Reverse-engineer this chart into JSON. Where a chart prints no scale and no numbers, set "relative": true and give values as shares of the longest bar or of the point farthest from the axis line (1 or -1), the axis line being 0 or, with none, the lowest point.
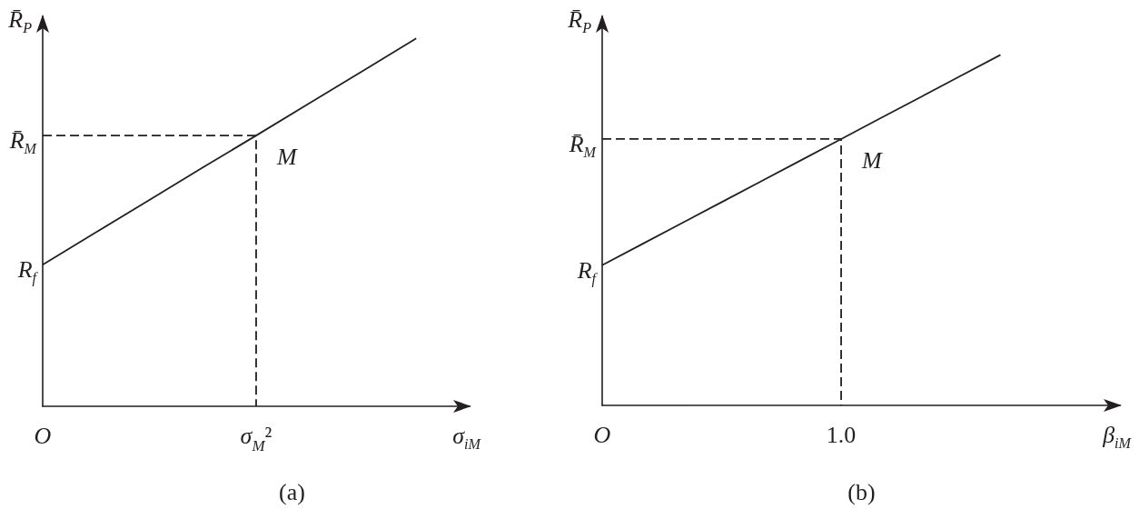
{
  "chart_data": [
    {
      "type": "line",
      "relative": true,
      "marker": "none",
      "xlabel": "σ$_{iM}$",
      "ylabel": "R̄$_{P}$",
      "categories": [
        "O",
        null,
        null,
        null,
        "σ$_{M}$²",
        null,
        null,
        null,
        null
      ],
      "series": [
        {
          "values": [
            0.385,
            0.473,
            0.561,
            0.649,
            0.736,
            0.824,
            0.912,
            1,
            null
          ],
          "color": "#231f20",
          "line_style": "solid"
        },
        {
          "type": "step",
          "values": [
            0.736,
            0.736,
            0.736,
            0.736,
            0,
            null,
            null,
            null,
            null
          ],
          "color": "#231f20",
          "line_style": "dashed"
        }
      ],
      "annotations": [
        {
          "text": "M",
          "x": "σ$_{M}$²",
          "y": 0.736
        },
        {
          "text": "R̄$_{M}$",
          "x": "O",
          "y": 0.736
        },
        {
          "text": "R$_{f}$",
          "x": "O",
          "y": 0.385
        },
        "(a)"
      ]
    },
    {
      "type": "line",
      "relative": true,
      "marker": "none",
      "xlabel": "β$_{iM}$",
      "ylabel": "R̄$_{P}$",
      "categories": [
        "O",
        null,
        null,
        null,
        null,
        null,
        "1.0",
        null,
        null,
        null,
        null,
        null,
        null,
        null
      ],
      "series": [
        {
          "values": [
            0.4,
            0.46,
            0.52,
            0.58,
            0.64,
            0.7,
            0.76,
            0.82,
            0.88,
            0.94,
            1,
            null,
            null,
            null
          ],
          "color": "#231f20",
          "line_style": "solid"
        },
        {
          "type": "step",
          "values": [
            0.76,
            0.76,
            0.76,
            0.76,
            0.76,
            0.76,
            0,
            null,
            null,
            null,
            null,
            null,
            null,
            null
          ],
          "color": "#231f20",
          "line_style": "dashed"
        }
      ],
      "annotations": [
        {
          "text": "M",
          "x": "1.0",
          "y": 0.76
        },
        {
          "text": "R̄$_{M}$",
          "x": "O",
          "y": 0.76
        },
        {
          "text": "R$_{f}$",
          "x": "O",
          "y": 0.4
        },
        "(b)"
      ]
    }
  ]
}
